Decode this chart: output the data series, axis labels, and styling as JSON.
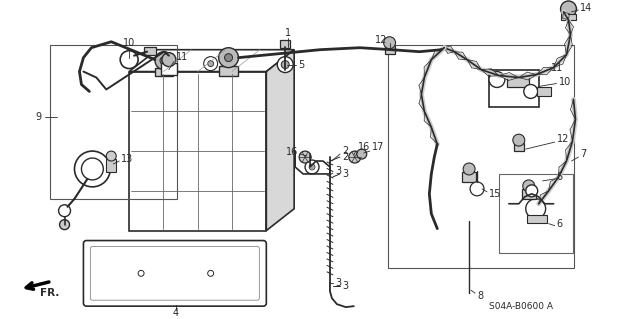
{
  "background_color": "#ffffff",
  "line_color": "#2a2a2a",
  "part_code": "S04A-B0600 A",
  "fig_width": 6.4,
  "fig_height": 3.19,
  "dpi": 100
}
